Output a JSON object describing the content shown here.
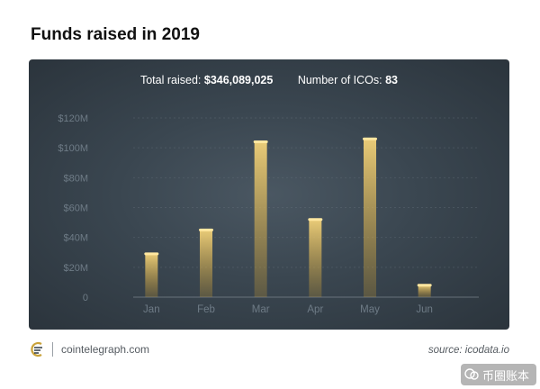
{
  "title": "Funds raised in 2019",
  "stats": {
    "total_label": "Total raised:",
    "total_value": "$346,089,025",
    "count_label": "Number of ICOs:",
    "count_value": "83"
  },
  "footer": {
    "site": "cointelegraph.com",
    "source_label": "source:",
    "source_value": "icodata.io"
  },
  "watermark": {
    "text": "币圈账本"
  },
  "colors": {
    "bar_top": "#f2d27a",
    "bar_bottom": "#c99a2e",
    "panel": "#3a4650"
  },
  "chart_data": {
    "type": "bar",
    "categories": [
      "Jan",
      "Feb",
      "Mar",
      "Apr",
      "May",
      "Jun"
    ],
    "values": [
      29,
      45,
      104,
      52,
      106,
      8
    ],
    "ylim": [
      0,
      120
    ],
    "yticks": [
      0,
      20,
      40,
      60,
      80,
      100,
      120
    ],
    "ytick_labels": [
      "0",
      "$20M",
      "$40M",
      "$60M",
      "$80M",
      "$100M",
      "$120M"
    ],
    "grid": true
  }
}
